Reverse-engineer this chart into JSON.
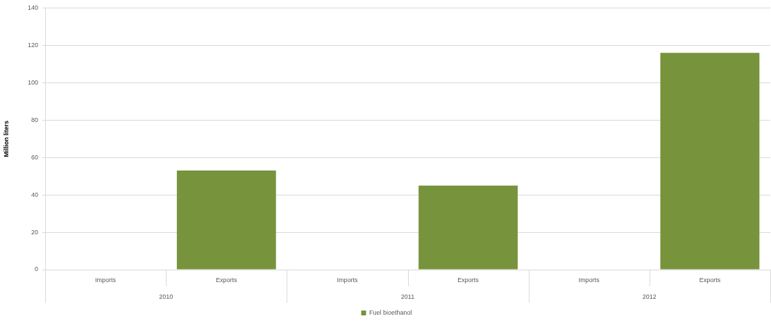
{
  "chart_data": {
    "type": "bar",
    "ylabel": "Million liters",
    "categories": [
      "Imports",
      "Exports",
      "Imports",
      "Exports",
      "Imports",
      "Exports"
    ],
    "annotations": [
      "2010",
      "2011",
      "2012"
    ],
    "series": [
      {
        "name": "Fuel bioethanol",
        "color": "#77933c",
        "values": [
          0,
          53,
          0,
          45,
          0,
          116
        ]
      }
    ],
    "ylim": [
      0,
      140
    ],
    "yticks": [
      0,
      20,
      40,
      60,
      80,
      100,
      120,
      140
    ],
    "grid": "y",
    "legend": "bottom"
  }
}
